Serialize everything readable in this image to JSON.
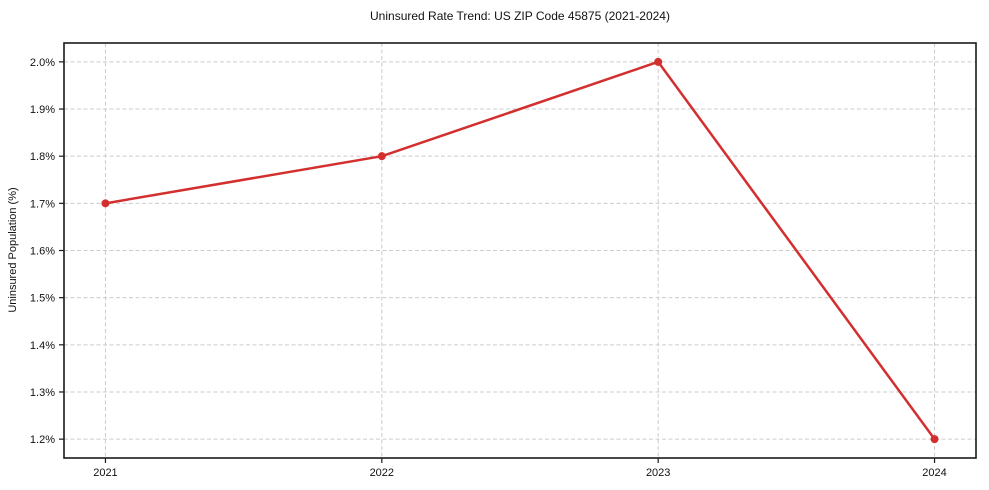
{
  "chart_data": {
    "type": "line",
    "title": "Uninsured Rate Trend: US ZIP Code 45875 (2021-2024)",
    "xlabel": "",
    "ylabel": "Uninsured Population (%)",
    "categories": [
      "2021",
      "2022",
      "2023",
      "2024"
    ],
    "values": [
      1.7,
      1.8,
      2.0,
      1.2
    ],
    "yticks": {
      "values": [
        1.2,
        1.3,
        1.4,
        1.5,
        1.6,
        1.7,
        1.8,
        1.9,
        2.0
      ],
      "labels": [
        "1.2%",
        "1.3%",
        "1.4%",
        "1.5%",
        "1.6%",
        "1.7%",
        "1.8%",
        "1.9%",
        "2.0%"
      ]
    },
    "xticks": {
      "positions": [
        0,
        1,
        2,
        3
      ],
      "labels": [
        "2021",
        "2022",
        "2023",
        "2024"
      ]
    },
    "xlim": [
      -0.15,
      3.15
    ],
    "ylim": [
      1.16,
      2.04
    ],
    "grid": true,
    "grid_style": "dashed",
    "legend": "none",
    "line_color": "#d32f2f",
    "marker": "circle",
    "grid_color": "#cccccc",
    "axis_color": "#1a1a1a",
    "background": "#ffffff"
  }
}
